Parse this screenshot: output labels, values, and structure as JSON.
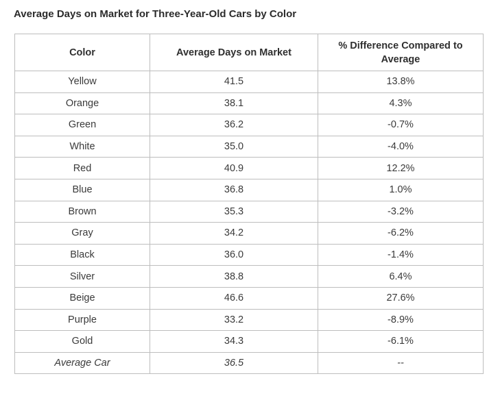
{
  "title": "Average Days on Market for Three-Year-Old Cars by Color",
  "table": {
    "headers": {
      "color": "Color",
      "days": "Average Days on Market",
      "diff": "% Difference Compared to Average"
    },
    "rows": [
      {
        "color": "Yellow",
        "days": "41.5",
        "diff": "13.8%"
      },
      {
        "color": "Orange",
        "days": "38.1",
        "diff": "4.3%"
      },
      {
        "color": "Green",
        "days": "36.2",
        "diff": "-0.7%"
      },
      {
        "color": "White",
        "days": "35.0",
        "diff": "-4.0%"
      },
      {
        "color": "Red",
        "days": "40.9",
        "diff": "12.2%"
      },
      {
        "color": "Blue",
        "days": "36.8",
        "diff": "1.0%"
      },
      {
        "color": "Brown",
        "days": "35.3",
        "diff": "-3.2%"
      },
      {
        "color": "Gray",
        "days": "34.2",
        "diff": "-6.2%"
      },
      {
        "color": "Black",
        "days": "36.0",
        "diff": "-1.4%"
      },
      {
        "color": "Silver",
        "days": "38.8",
        "diff": "6.4%"
      },
      {
        "color": "Beige",
        "days": "46.6",
        "diff": "27.6%"
      },
      {
        "color": "Purple",
        "days": "33.2",
        "diff": "-8.9%"
      },
      {
        "color": "Gold",
        "days": "34.3",
        "diff": "-6.1%"
      }
    ],
    "average": {
      "color": "Average Car",
      "days": "36.5",
      "diff": "--"
    }
  }
}
